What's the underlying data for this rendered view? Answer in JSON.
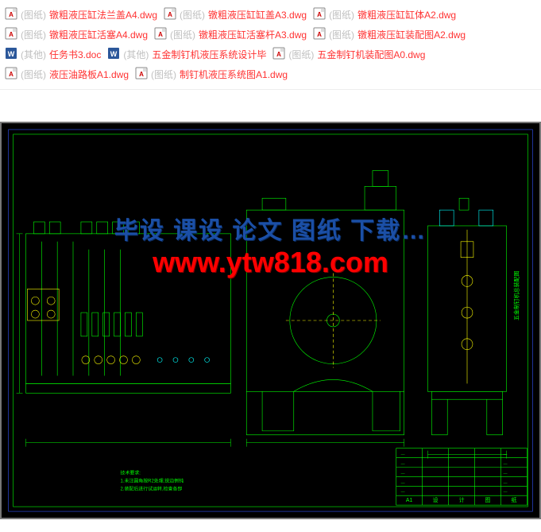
{
  "files": [
    {
      "icon": "dwg",
      "tag": "(图纸)",
      "name": "镦粗液压缸法兰盖A4.dwg"
    },
    {
      "icon": "dwg",
      "tag": "(图纸)",
      "name": "镦粗液压缸缸盖A3.dwg"
    },
    {
      "icon": "dwg",
      "tag": "(图纸)",
      "name": "镦粗液压缸缸体A2.dwg"
    },
    {
      "icon": "dwg",
      "tag": "(图纸)",
      "name": "镦粗液压缸活塞A4.dwg"
    },
    {
      "icon": "dwg",
      "tag": "(图纸)",
      "name": "镦粗液压缸活塞杆A3.dwg"
    },
    {
      "icon": "dwg",
      "tag": "(图纸)",
      "name": "镦粗液压缸装配图A2.dwg"
    },
    {
      "icon": "doc",
      "tag": "(其他)",
      "name": "任务书3.doc"
    },
    {
      "icon": "doc",
      "tag": "(其他)",
      "name": "五金制钉机液压系统设计毕"
    },
    {
      "icon": "dwg",
      "tag": "(图纸)",
      "name": "五金制钉机装配图A0.dwg"
    },
    {
      "icon": "dwg",
      "tag": "(图纸)",
      "name": "液压油路板A1.dwg"
    },
    {
      "icon": "dwg",
      "tag": "(图纸)",
      "name": "制钉机液压系统图A1.dwg"
    }
  ],
  "watermark": {
    "line1": "毕设 课设 论文 图纸 下载…",
    "line2": "www.ytw818.com"
  },
  "cad": {
    "bg": "#000000",
    "line_color": "#00ff00",
    "accent_color": "#ffff00",
    "cyan": "#00ffff",
    "magenta": "#ff00ff",
    "title_block_rows": 6,
    "title_block_cols": 5,
    "title_labels": [
      "A1",
      "设",
      "计",
      "图",
      "纸"
    ]
  }
}
